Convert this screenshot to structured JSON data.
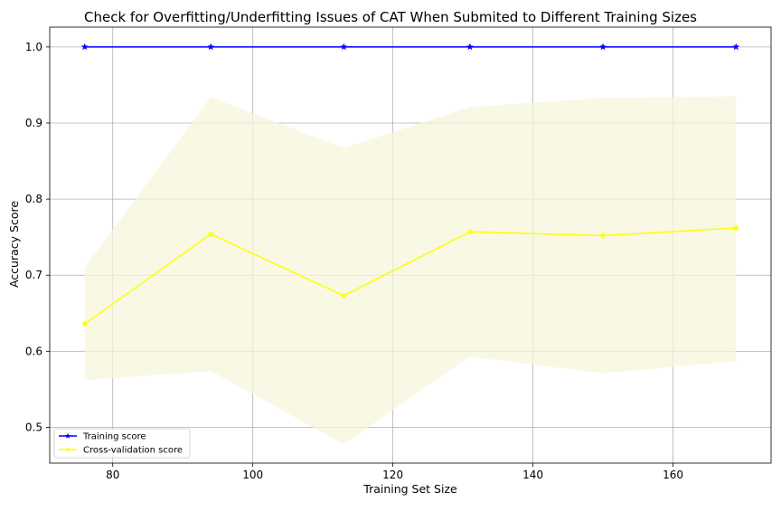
{
  "chart_data": {
    "type": "line",
    "title": "Check for Overfitting/Underfitting Issues of CAT When Submited to Different Training Sizes",
    "xlabel": "Training Set Size",
    "ylabel": "Accuracy Score",
    "xlim": [
      71,
      174
    ],
    "ylim": [
      0.453,
      1.026
    ],
    "xticks": [
      80,
      100,
      120,
      140,
      160
    ],
    "yticks": [
      0.5,
      0.6,
      0.7,
      0.8,
      0.9,
      1.0
    ],
    "grid": true,
    "legend_position": "lower-left",
    "x": [
      76,
      94,
      113,
      131,
      150,
      169
    ],
    "series": [
      {
        "name": "Training score",
        "color": "#0000ff",
        "marker": "star",
        "values": [
          1.0,
          1.0,
          1.0,
          1.0,
          1.0,
          1.0
        ]
      },
      {
        "name": "Cross-validation score",
        "color": "#ffff00",
        "marker": "star",
        "values": [
          0.636,
          0.754,
          0.673,
          0.757,
          0.752,
          0.762
        ],
        "band_lower": [
          0.562,
          0.574,
          0.478,
          0.593,
          0.571,
          0.587
        ],
        "band_upper": [
          0.71,
          0.934,
          0.867,
          0.921,
          0.933,
          0.935
        ],
        "band_color": "#f5f5dc"
      }
    ]
  }
}
